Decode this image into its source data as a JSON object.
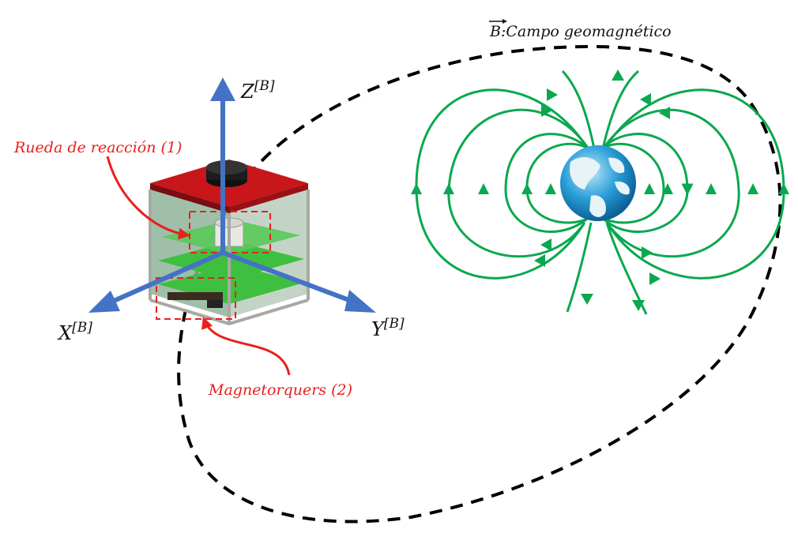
{
  "field": {
    "symbol": "B",
    "label": ":Campo geomagnético"
  },
  "axes": {
    "x": {
      "base": "X",
      "sup": "[B]"
    },
    "y": {
      "base": "Y",
      "sup": "[B]"
    },
    "z": {
      "base": "Z",
      "sup": "[B]"
    }
  },
  "components": {
    "reaction_wheel": "Rueda de reacción (1)",
    "magnetorquers": "Magnetorquers (2)"
  },
  "colors": {
    "axis": "#4472c4",
    "field_line": "#0aa84f",
    "callout": "#e8201e",
    "orbit": "#000000",
    "panel_top": "#c8161b",
    "pcb": "#3fbf3f",
    "ocean": "#2a9fd8"
  },
  "icons": [
    "cubesat-icon",
    "earth-globe-icon",
    "reaction-wheel-icon"
  ]
}
